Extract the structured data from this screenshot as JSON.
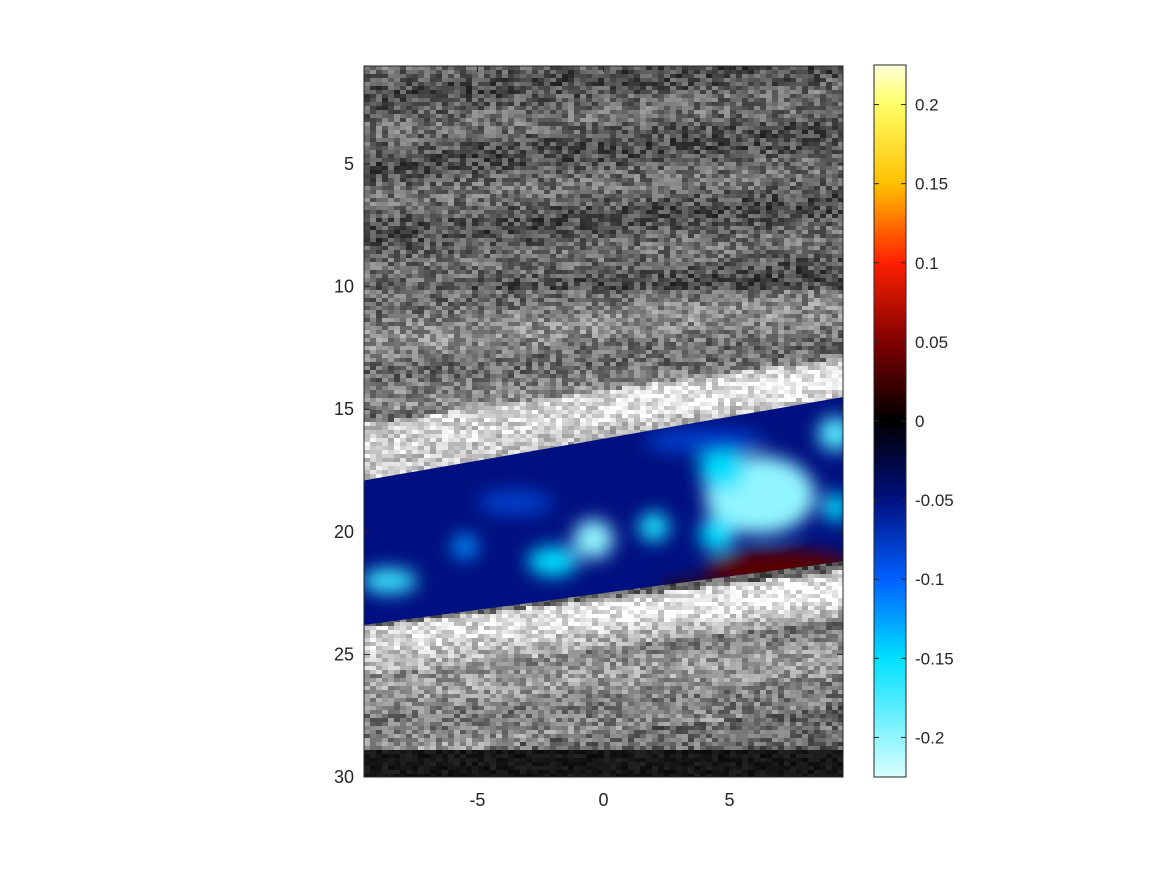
{
  "chart_data": {
    "type": "heatmap",
    "title": "",
    "xlabel": "",
    "ylabel": "",
    "x_axis": {
      "range": [
        -9.5,
        9.5
      ],
      "ticks": [
        {
          "value": -5,
          "label": "-5"
        },
        {
          "value": 0,
          "label": "0"
        },
        {
          "value": 5,
          "label": "5"
        }
      ]
    },
    "y_axis": {
      "range": [
        1,
        30
      ],
      "direction": "reversed",
      "ticks": [
        {
          "value": 5,
          "label": "5"
        },
        {
          "value": 10,
          "label": "10"
        },
        {
          "value": 15,
          "label": "15"
        },
        {
          "value": 20,
          "label": "20"
        },
        {
          "value": 25,
          "label": "25"
        },
        {
          "value": 30,
          "label": "30"
        }
      ]
    },
    "background_layer": {
      "type": "grayscale-speckle-image",
      "bright_bands": [
        {
          "label": "upper wall",
          "y_start_left": 15.5,
          "y_start_right": 12.8,
          "thickness": 2.3
        },
        {
          "label": "lower wall",
          "y_start_left": 23.8,
          "y_start_right": 21.5,
          "thickness": 2.0
        }
      ],
      "dark_band_bottom": {
        "y_start": 28.8,
        "y_end": 30
      }
    },
    "overlay_region": {
      "top_left_y": 17.9,
      "top_right_y": 14.5,
      "bottom_left_y": 23.8,
      "bottom_right_y": 21.2,
      "base_value": -0.05
    },
    "overlay_blobs": [
      {
        "x": 6.2,
        "y": 18.5,
        "rx": 2.2,
        "ry": 1.6,
        "value": -0.2
      },
      {
        "x": 4.7,
        "y": 17.4,
        "rx": 0.9,
        "ry": 0.9,
        "value": -0.15
      },
      {
        "x": 9.2,
        "y": 16.0,
        "rx": 0.7,
        "ry": 0.7,
        "value": -0.18
      },
      {
        "x": 9.2,
        "y": 19.0,
        "rx": 0.5,
        "ry": 0.6,
        "value": -0.15
      },
      {
        "x": 4.5,
        "y": 20.1,
        "rx": 0.7,
        "ry": 0.7,
        "value": -0.15
      },
      {
        "x": -0.4,
        "y": 20.3,
        "rx": 0.8,
        "ry": 0.8,
        "value": -0.2
      },
      {
        "x": 2.0,
        "y": 19.8,
        "rx": 0.6,
        "ry": 0.6,
        "value": -0.16
      },
      {
        "x": -2.0,
        "y": 21.2,
        "rx": 1.0,
        "ry": 0.6,
        "value": -0.15
      },
      {
        "x": -5.5,
        "y": 20.6,
        "rx": 0.5,
        "ry": 0.5,
        "value": -0.12
      },
      {
        "x": -8.5,
        "y": 22.0,
        "rx": 1.1,
        "ry": 0.5,
        "value": -0.17
      },
      {
        "x": 4.0,
        "y": 16.3,
        "rx": 2.4,
        "ry": 0.5,
        "value": -0.08
      },
      {
        "x": -3.5,
        "y": 18.8,
        "rx": 1.5,
        "ry": 0.5,
        "value": -0.08
      }
    ],
    "overlay_positive_regions": [
      {
        "x": 7.0,
        "y": 21.5,
        "rx": 3.0,
        "ry": 0.8,
        "value": 0.035
      },
      {
        "x": 3.5,
        "y": 22.4,
        "rx": 1.2,
        "ry": 0.4,
        "value": 0.02
      }
    ],
    "colorbar": {
      "range": [
        -0.225,
        0.225
      ],
      "ticks": [
        {
          "value": 0.2,
          "label": "0.2"
        },
        {
          "value": 0.15,
          "label": "0.15"
        },
        {
          "value": 0.1,
          "label": "0.1"
        },
        {
          "value": 0.05,
          "label": "0.05"
        },
        {
          "value": 0,
          "label": "0"
        },
        {
          "value": -0.05,
          "label": "-0.05"
        },
        {
          "value": -0.1,
          "label": "-0.1"
        },
        {
          "value": -0.15,
          "label": "-0.15"
        },
        {
          "value": -0.2,
          "label": "-0.2"
        }
      ],
      "gradient_stops": [
        {
          "value": 0.225,
          "color": "#ffffd9"
        },
        {
          "value": 0.2,
          "color": "#ffff66"
        },
        {
          "value": 0.15,
          "color": "#ffc000"
        },
        {
          "value": 0.1,
          "color": "#ff2000"
        },
        {
          "value": 0.05,
          "color": "#800000"
        },
        {
          "value": 0.0,
          "color": "#000000"
        },
        {
          "value": -0.05,
          "color": "#001080"
        },
        {
          "value": -0.1,
          "color": "#0060ff"
        },
        {
          "value": -0.15,
          "color": "#00e0ff"
        },
        {
          "value": -0.225,
          "color": "#d9ffff"
        }
      ]
    }
  }
}
